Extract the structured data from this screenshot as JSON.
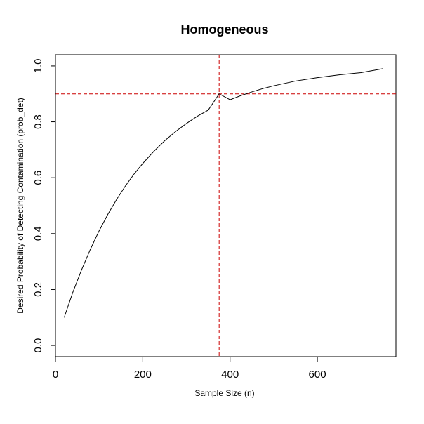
{
  "chart_data": {
    "type": "line",
    "title": "Homogeneous",
    "xlabel": "Sample Size (n)",
    "ylabel": "Desired Probability of Detecting Contamination (prob_det)",
    "xlim": [
      0,
      780
    ],
    "ylim": [
      -0.04,
      1.04
    ],
    "xticks": [
      0,
      200,
      400,
      600
    ],
    "yticks": [
      0.0,
      0.2,
      0.4,
      0.6,
      0.8,
      1.0
    ],
    "grid": false,
    "series": [
      {
        "color": "#000000",
        "x": [
          20,
          40,
          60,
          80,
          100,
          120,
          140,
          160,
          180,
          200,
          225,
          250,
          275,
          300,
          325,
          350,
          375,
          400,
          425,
          450,
          475,
          500,
          550,
          600,
          650,
          700,
          750
        ],
        "y": [
          0.1,
          0.191,
          0.271,
          0.344,
          0.41,
          0.469,
          0.522,
          0.57,
          0.613,
          0.651,
          0.694,
          0.732,
          0.765,
          0.794,
          0.82,
          0.842,
          0.9,
          0.879,
          0.894,
          0.907,
          0.919,
          0.929,
          0.946,
          0.958,
          0.968,
          0.976,
          0.99
        ]
      }
    ],
    "reference_lines": [
      {
        "orientation": "horizontal",
        "value": 0.9,
        "color": "#cc0000",
        "style": "dashed"
      },
      {
        "orientation": "vertical",
        "value": 375,
        "color": "#cc0000",
        "style": "dashed"
      }
    ]
  }
}
